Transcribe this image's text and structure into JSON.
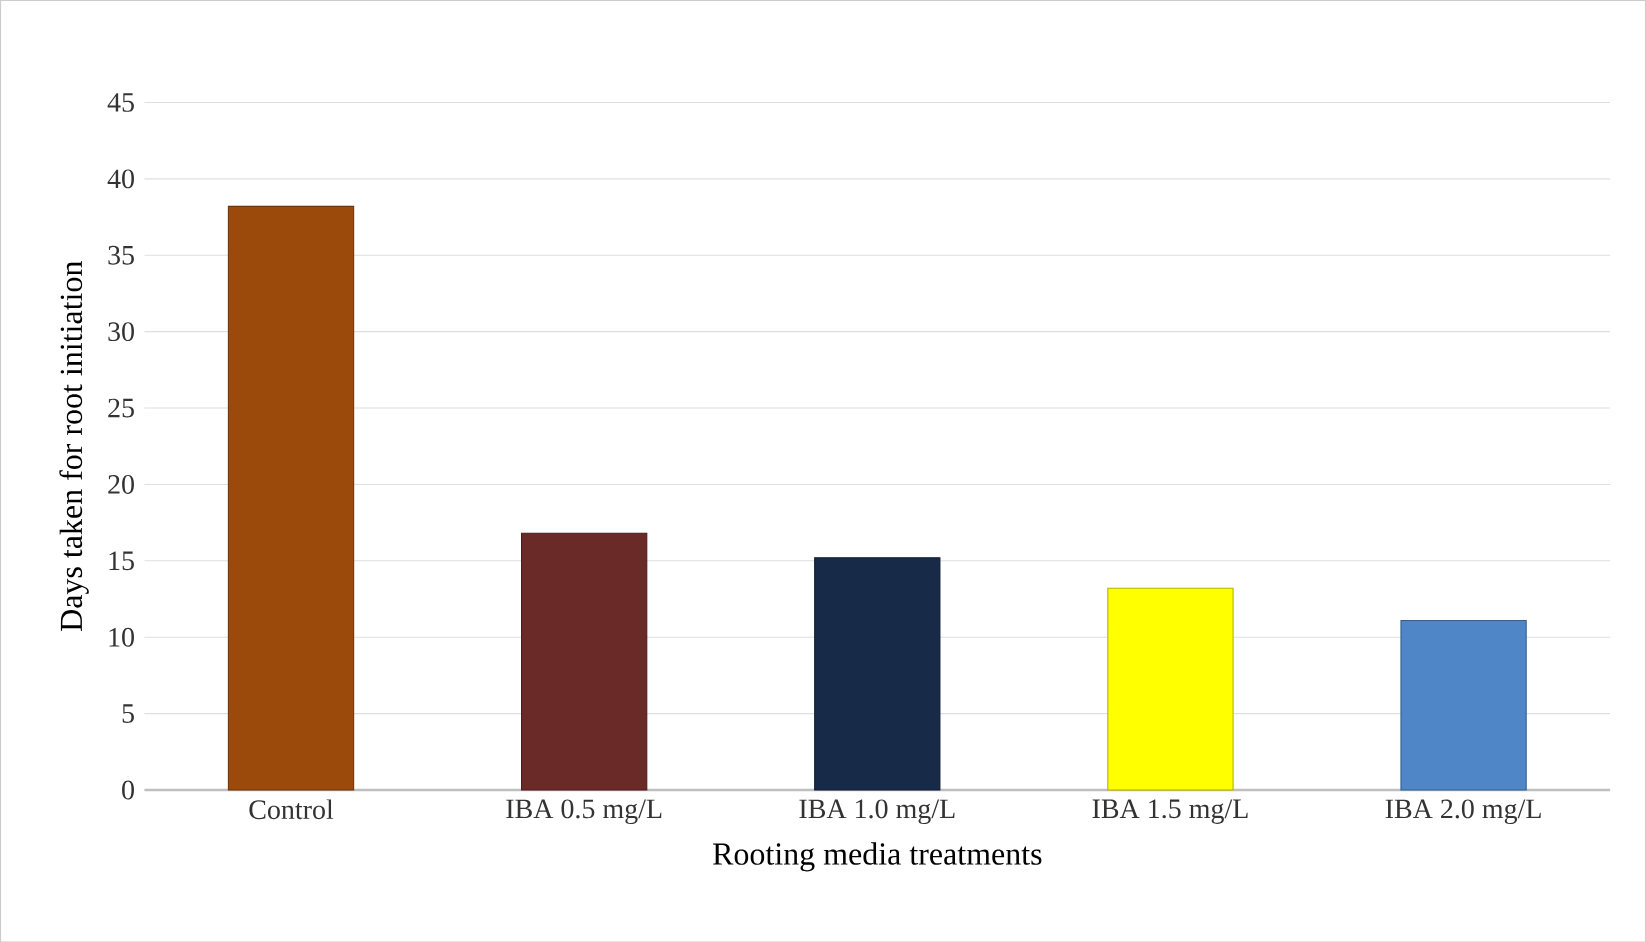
{
  "chart_data": {
    "type": "bar",
    "xlabel": "Rooting media treatments",
    "ylabel": "Days taken for root initiation",
    "categories": [
      "Control",
      "IBA 0.5 mg/L",
      "IBA 1.0 mg/L",
      "IBA 1.5 mg/L",
      "IBA 2.0 mg/L"
    ],
    "values": [
      38.2,
      16.8,
      15.2,
      13.2,
      11.1
    ],
    "colors": [
      "#9c4a0c",
      "#6a2a28",
      "#172a48",
      "#ffff00",
      "#4f86c8"
    ],
    "ylim": [
      0,
      45
    ],
    "yticks": [
      0,
      5,
      10,
      15,
      20,
      25,
      30,
      35,
      40,
      45
    ],
    "grid": "y"
  }
}
